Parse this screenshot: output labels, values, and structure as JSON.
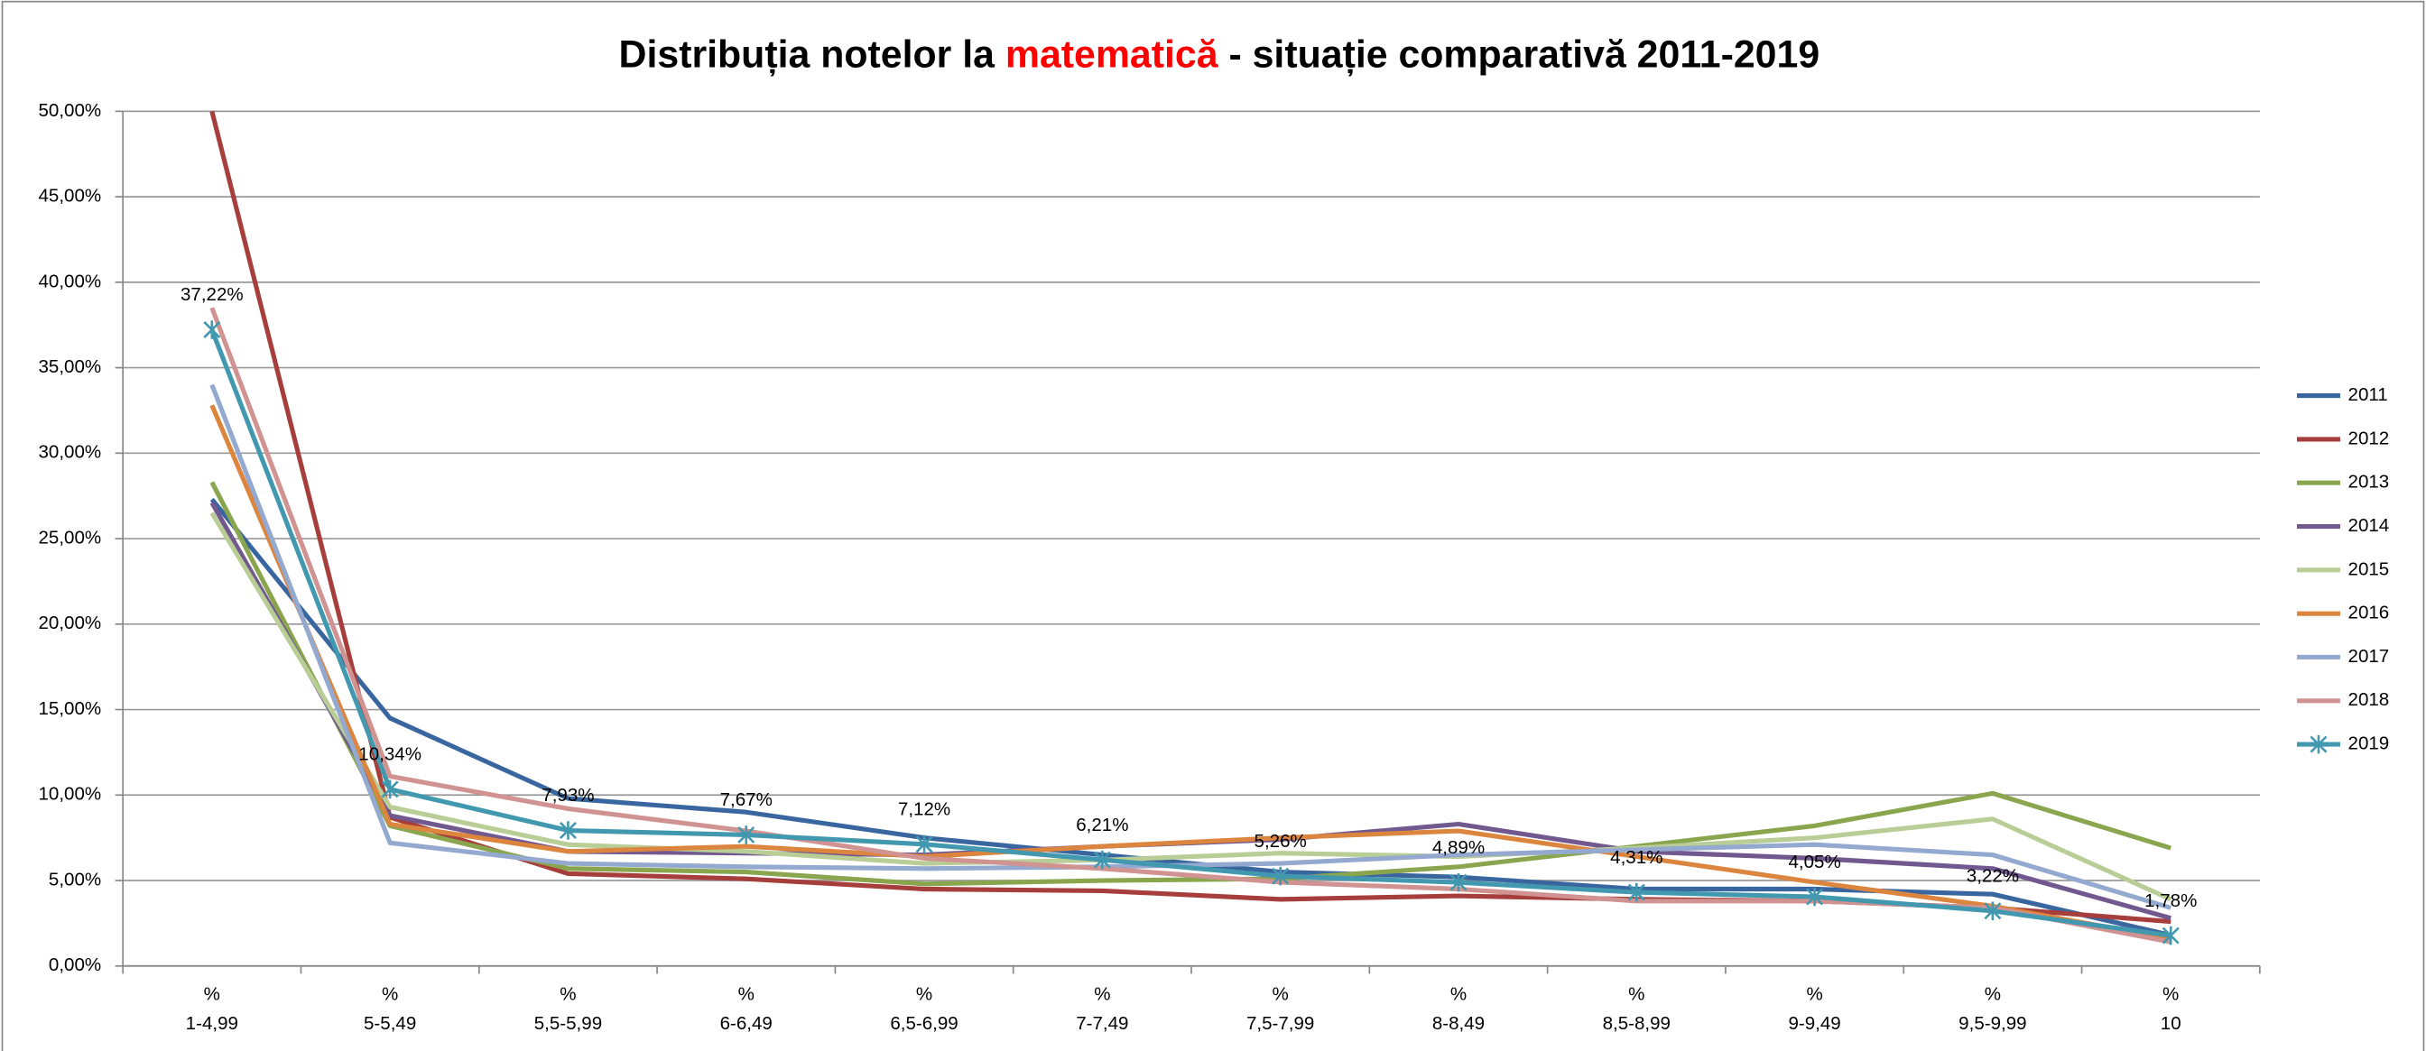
{
  "chart_data": {
    "type": "line",
    "title_parts": [
      "Distribuția notelor la ",
      "matematică",
      " - situație comparativă 2011-2019"
    ],
    "title_colors": [
      "#000000",
      "#ff0000",
      "#000000"
    ],
    "categories": [
      "%\n1-4,99",
      "%\n5-5,49",
      "%\n5,5-5,99",
      "%\n6-6,49",
      "%\n6,5-6,99",
      "%\n7-7,49",
      "%\n7,5-7,99",
      "%\n8-8,49",
      "%\n8,5-8,99",
      "%\n9-9,49",
      "%\n9,5-9,99",
      "%\n10"
    ],
    "ylim": [
      0,
      50
    ],
    "yticks": [
      {
        "value": 0,
        "label": "0,00%"
      },
      {
        "value": 5,
        "label": "5,00%"
      },
      {
        "value": 10,
        "label": "10,00%"
      },
      {
        "value": 15,
        "label": "15,00%"
      },
      {
        "value": 20,
        "label": "20,00%"
      },
      {
        "value": 25,
        "label": "25,00%"
      },
      {
        "value": 30,
        "label": "30,00%"
      },
      {
        "value": 35,
        "label": "35,00%"
      },
      {
        "value": 40,
        "label": "40,00%"
      },
      {
        "value": 45,
        "label": "45,00%"
      },
      {
        "value": 50,
        "label": "50,00%"
      }
    ],
    "grid": true,
    "legend": "right",
    "series": [
      {
        "name": "2011",
        "color": "#3a66a0",
        "values": [
          27.3,
          14.5,
          9.8,
          9.0,
          7.5,
          6.5,
          5.5,
          5.2,
          4.5,
          4.5,
          4.2,
          1.8
        ]
      },
      {
        "name": "2012",
        "color": "#a63e3b",
        "values": [
          50,
          8.7,
          5.4,
          5.1,
          4.5,
          4.4,
          3.9,
          4.1,
          3.9,
          3.8,
          3.4,
          2.6
        ]
      },
      {
        "name": "2013",
        "color": "#89a54e",
        "values": [
          28.3,
          8.2,
          5.7,
          5.5,
          4.8,
          5.0,
          5.1,
          5.8,
          7.0,
          8.2,
          10.1,
          6.9
        ]
      },
      {
        "name": "2014",
        "color": "#71588f",
        "values": [
          27.1,
          8.8,
          6.7,
          6.6,
          6.5,
          7.0,
          7.4,
          8.3,
          6.7,
          6.3,
          5.7,
          2.8
        ]
      },
      {
        "name": "2015",
        "color": "#b9cd96",
        "values": [
          26.5,
          9.3,
          7.1,
          6.7,
          6.0,
          6.2,
          6.6,
          6.4,
          6.9,
          7.5,
          8.6,
          3.9
        ]
      },
      {
        "name": "2016",
        "color": "#dc853e",
        "values": [
          32.8,
          8.3,
          6.7,
          7.0,
          6.4,
          7.0,
          7.5,
          7.9,
          6.4,
          4.9,
          3.5,
          1.6
        ]
      },
      {
        "name": "2017",
        "color": "#93a9cf",
        "values": [
          34.0,
          7.2,
          6.0,
          5.8,
          5.7,
          5.8,
          6.0,
          6.5,
          6.8,
          7.1,
          6.5,
          3.4
        ]
      },
      {
        "name": "2018",
        "color": "#d19392",
        "values": [
          38.5,
          11.1,
          9.2,
          7.9,
          6.3,
          5.7,
          4.9,
          4.5,
          3.8,
          3.8,
          3.4,
          1.4
        ]
      },
      {
        "name": "2019",
        "color": "#4198af",
        "marker": "star",
        "values": [
          37.22,
          10.34,
          7.93,
          7.67,
          7.12,
          6.21,
          5.26,
          4.89,
          4.31,
          4.05,
          3.22,
          1.78
        ],
        "value_labels": [
          "37,22%",
          "10,34%",
          "7,93%",
          "7,67%",
          "7,12%",
          "6,21%",
          "5,26%",
          "4,89%",
          "4,31%",
          "4,05%",
          "3,22%",
          "1,78%"
        ]
      }
    ]
  }
}
